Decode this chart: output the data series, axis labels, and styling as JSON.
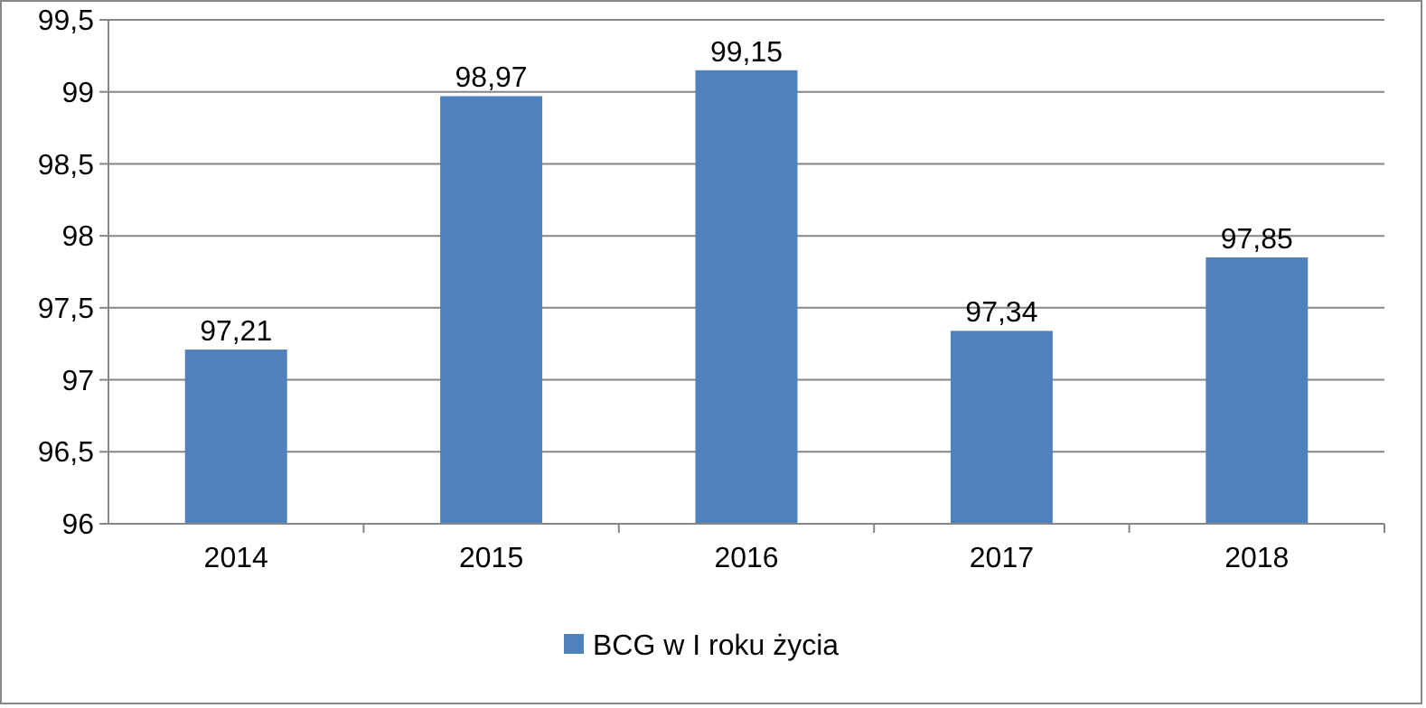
{
  "chart_data": {
    "type": "bar",
    "categories": [
      "2014",
      "2015",
      "2016",
      "2017",
      "2018"
    ],
    "series": [
      {
        "name": "BCG w I roku życia",
        "color": "#4f81bd",
        "values": [
          97.21,
          98.97,
          99.15,
          97.34,
          97.85
        ],
        "value_labels": [
          "97,21",
          "98,97",
          "99,15",
          "97,34",
          "97,85"
        ]
      }
    ],
    "ylim": [
      96,
      99.5
    ],
    "yticks": [
      96,
      {
        "value": 96.5,
        "label": "96,5"
      },
      97,
      {
        "value": 97.5,
        "label": "97,5"
      },
      98,
      {
        "value": 98.5,
        "label": "98,5"
      },
      99,
      {
        "value": 99.5,
        "label": "99,5"
      }
    ],
    "grid": "y",
    "legend": "bottom"
  }
}
